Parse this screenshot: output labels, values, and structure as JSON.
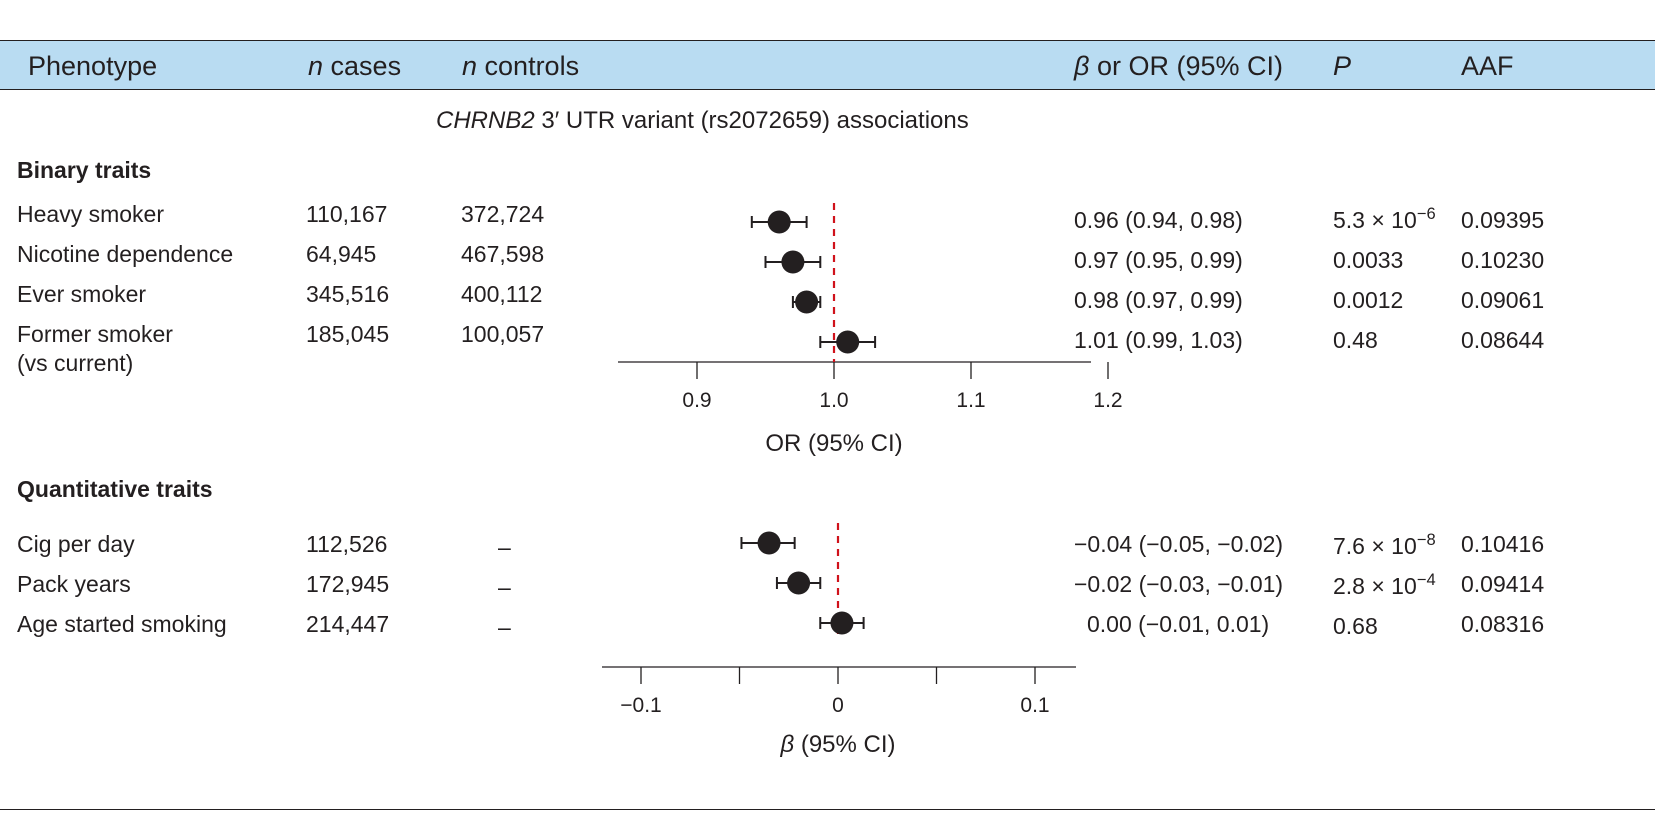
{
  "header": {
    "phenotype": "Phenotype",
    "n_cases_it": "n",
    "n_cases": " cases",
    "n_controls_it": "n",
    "n_controls": " controls",
    "beta_sym": "β",
    "beta_or": " or OR (95% CI)",
    "p": "P",
    "aaf": "AAF"
  },
  "subtitle": {
    "gene": "CHRNB2",
    "rest": " 3′ UTR variant (rs2072659) associations"
  },
  "colors": {
    "header_bg": "#b9dcf2",
    "ref_line": "#d0121b",
    "marker": "#231f20"
  },
  "chart_data": [
    {
      "type": "scatter",
      "section": "Binary traits",
      "xlabel": "OR (95% CI)",
      "xlim": [
        0.85,
        1.2
      ],
      "ticks": [
        {
          "v": 0.9,
          "label": "0.9"
        },
        {
          "v": 1.0,
          "label": "1.0"
        },
        {
          "v": 1.1,
          "label": "1.1"
        },
        {
          "v": 1.2,
          "label": "1.2"
        }
      ],
      "ref": 1.0,
      "rows": [
        {
          "name": "Heavy smoker",
          "cases": "110,167",
          "controls": "372,724",
          "est": 0.96,
          "lo": 0.94,
          "hi": 0.98,
          "ci_text": "0.96 (0.94, 0.98)",
          "p_main": "5.3 × 10",
          "p_exp": "−6",
          "aaf": "0.09395"
        },
        {
          "name": "Nicotine dependence",
          "cases": "64,945",
          "controls": "467,598",
          "est": 0.97,
          "lo": 0.95,
          "hi": 0.99,
          "ci_text": "0.97 (0.95, 0.99)",
          "p_main": "0.0033",
          "p_exp": "",
          "aaf": "0.10230"
        },
        {
          "name": "Ever smoker",
          "cases": "345,516",
          "controls": "400,112",
          "est": 0.98,
          "lo": 0.97,
          "hi": 0.99,
          "ci_text": "0.98 (0.97, 0.99)",
          "p_main": "0.0012",
          "p_exp": "",
          "aaf": "0.09061"
        },
        {
          "name": "Former smoker",
          "name2": "(vs current)",
          "cases": "185,045",
          "controls": "100,057",
          "est": 1.01,
          "lo": 0.99,
          "hi": 1.03,
          "ci_text": "1.01 (0.99, 1.03)",
          "p_main": "0.48",
          "p_exp": "",
          "aaf": "0.08644"
        }
      ]
    },
    {
      "type": "scatter",
      "section": "Quantitative traits",
      "xlabel_sym": "β",
      "xlabel": " (95% CI)",
      "xlim": [
        -0.12,
        0.12
      ],
      "ticks": [
        {
          "v": -0.1,
          "label": "−0.1"
        },
        {
          "v": -0.05,
          "label": ""
        },
        {
          "v": 0,
          "label": "0"
        },
        {
          "v": 0.05,
          "label": ""
        },
        {
          "v": 0.1,
          "label": "0.1"
        }
      ],
      "ref": 0,
      "rows": [
        {
          "name": "Cig per day",
          "cases": "112,526",
          "controls": "–",
          "est": -0.035,
          "lo": -0.049,
          "hi": -0.022,
          "ci_text": "−0.04 (−0.05, −0.02)",
          "p_main": "7.6 × 10",
          "p_exp": "−8",
          "aaf": "0.10416"
        },
        {
          "name": "Pack years",
          "cases": "172,945",
          "controls": "–",
          "est": -0.02,
          "lo": -0.031,
          "hi": -0.009,
          "ci_text": "−0.02 (−0.03, −0.01)",
          "p_main": "2.8 × 10",
          "p_exp": "−4",
          "aaf": "0.09414"
        },
        {
          "name": "Age started smoking",
          "cases": "214,447",
          "controls": "–",
          "est": 0.002,
          "lo": -0.009,
          "hi": 0.013,
          "ci_text": "0.00 (−0.01, 0.01)",
          "p_main": "0.68",
          "p_exp": "",
          "aaf": "0.08316"
        }
      ]
    }
  ]
}
